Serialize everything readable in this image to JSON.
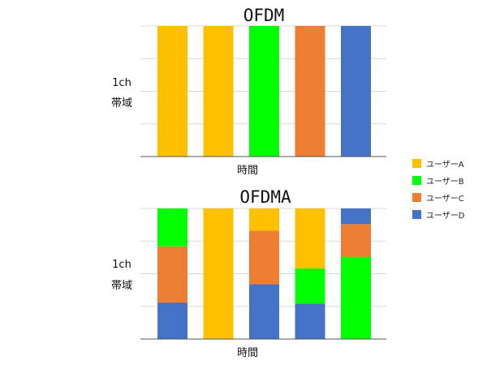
{
  "colors": {
    "ユーザーA": "#FFC000",
    "ユーザーB": "#00FF00",
    "ユーザーC": "#ED7D31",
    "ユーザーD": "#4472C4",
    "grid": "#d9d9d9",
    "axis": "#555555"
  },
  "legend": {
    "position": "right",
    "items": [
      "ユーザーA",
      "ユーザーB",
      "ユーザーC",
      "ユーザーD"
    ]
  },
  "chart_data": [
    {
      "type": "bar",
      "stacked": true,
      "title": "OFDM",
      "xlabel": "時間",
      "ylabel": [
        "1ch",
        "帯域"
      ],
      "ylim": [
        0,
        1
      ],
      "grid": true,
      "slots": [
        [
          {
            "user": "ユーザーA",
            "value": 1
          }
        ],
        [
          {
            "user": "ユーザーA",
            "value": 1
          }
        ],
        [
          {
            "user": "ユーザーB",
            "value": 1
          }
        ],
        [
          {
            "user": "ユーザーC",
            "value": 1
          }
        ],
        [
          {
            "user": "ユーザーD",
            "value": 1
          }
        ]
      ]
    },
    {
      "type": "bar",
      "stacked": true,
      "title": "OFDMA",
      "xlabel": "時間",
      "ylabel": [
        "1ch",
        "帯域"
      ],
      "ylim": [
        0,
        1
      ],
      "grid": true,
      "slots": [
        [
          {
            "user": "ユーザーD",
            "value": 0.28
          },
          {
            "user": "ユーザーC",
            "value": 0.43
          },
          {
            "user": "ユーザーB",
            "value": 0.29
          }
        ],
        [
          {
            "user": "ユーザーA",
            "value": 1
          }
        ],
        [
          {
            "user": "ユーザーD",
            "value": 0.42
          },
          {
            "user": "ユーザーC",
            "value": 0.41
          },
          {
            "user": "ユーザーA",
            "value": 0.17
          }
        ],
        [
          {
            "user": "ユーザーD",
            "value": 0.27
          },
          {
            "user": "ユーザーB",
            "value": 0.27
          },
          {
            "user": "ユーザーA",
            "value": 0.46
          }
        ],
        [
          {
            "user": "ユーザーB",
            "value": 0.63
          },
          {
            "user": "ユーザーC",
            "value": 0.25
          },
          {
            "user": "ユーザーD",
            "value": 0.12
          }
        ]
      ]
    }
  ]
}
